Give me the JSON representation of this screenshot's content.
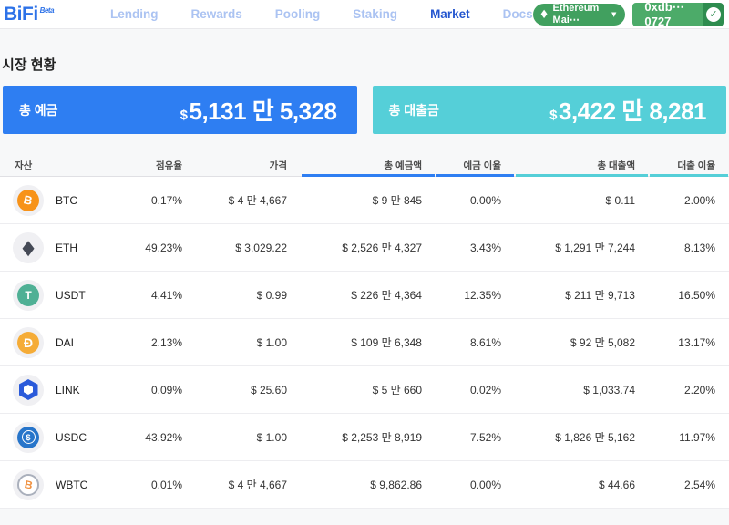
{
  "brand": {
    "logo": "BiFi",
    "beta": "Beta"
  },
  "nav": {
    "items": [
      {
        "label": "Lending"
      },
      {
        "label": "Rewards"
      },
      {
        "label": "Pooling"
      },
      {
        "label": "Staking"
      },
      {
        "label": "Market"
      },
      {
        "label": "Docs"
      }
    ],
    "active": "Market"
  },
  "wallet": {
    "network": "Ethereum Mai⋯",
    "address": "0xdb⋯0727"
  },
  "page": {
    "heading": "시장 현황"
  },
  "stats": {
    "deposit": {
      "label": "총 예금",
      "currency": "$",
      "value": "5,131 만 5,328"
    },
    "loan": {
      "label": "총 대출금",
      "currency": "$",
      "value": "3,422 만 8,281"
    }
  },
  "table": {
    "headers": [
      "자산",
      "점유율",
      "가격",
      "총 예금액",
      "예금 이율",
      "총 대출액",
      "대출 이율"
    ],
    "rows": [
      {
        "symbol": "BTC",
        "share": "0.17%",
        "price": "$ 4 만 4,667",
        "deposit_total": "$ 9 만 845",
        "deposit_rate": "0.00%",
        "loan_total": "$ 0.11",
        "loan_rate": "2.00%"
      },
      {
        "symbol": "ETH",
        "share": "49.23%",
        "price": "$ 3,029.22",
        "deposit_total": "$ 2,526 만 4,327",
        "deposit_rate": "3.43%",
        "loan_total": "$ 1,291 만 7,244",
        "loan_rate": "8.13%"
      },
      {
        "symbol": "USDT",
        "share": "4.41%",
        "price": "$ 0.99",
        "deposit_total": "$ 226 만 4,364",
        "deposit_rate": "12.35%",
        "loan_total": "$ 211 만 9,713",
        "loan_rate": "16.50%"
      },
      {
        "symbol": "DAI",
        "share": "2.13%",
        "price": "$ 1.00",
        "deposit_total": "$ 109 만 6,348",
        "deposit_rate": "8.61%",
        "loan_total": "$ 92 만 5,082",
        "loan_rate": "13.17%"
      },
      {
        "symbol": "LINK",
        "share": "0.09%",
        "price": "$ 25.60",
        "deposit_total": "$ 5 만 660",
        "deposit_rate": "0.02%",
        "loan_total": "$ 1,033.74",
        "loan_rate": "2.20%"
      },
      {
        "symbol": "USDC",
        "share": "43.92%",
        "price": "$ 1.00",
        "deposit_total": "$ 2,253 만 8,919",
        "deposit_rate": "7.52%",
        "loan_total": "$ 1,826 만 5,162",
        "loan_rate": "11.97%"
      },
      {
        "symbol": "WBTC",
        "share": "0.01%",
        "price": "$ 4 만 4,667",
        "deposit_total": "$ 9,862.86",
        "deposit_rate": "0.00%",
        "loan_total": "$ 44.66",
        "loan_rate": "2.54%"
      }
    ]
  },
  "icons": {
    "btc": "B",
    "eth": "◆",
    "usdt": "T",
    "dai": "Ð",
    "usdc": "$",
    "wbtc": "B",
    "check": "✓",
    "caret": "▼",
    "network_eth": "◆"
  },
  "colors": {
    "accent_blue": "#2e7ef2",
    "accent_teal": "#55cfd8",
    "nav_active": "#2456cf",
    "nav_inactive": "#abc3f2",
    "network_green": "#41a05f",
    "wallet_green": "#4cab69",
    "wallet_check_green": "#2e8c4f",
    "btc_orange": "#f7931a",
    "usdt_green": "#4fb095",
    "dai_yellow": "#f5ac37",
    "link_blue": "#2a5ada",
    "usdc_blue": "#2775ca"
  }
}
